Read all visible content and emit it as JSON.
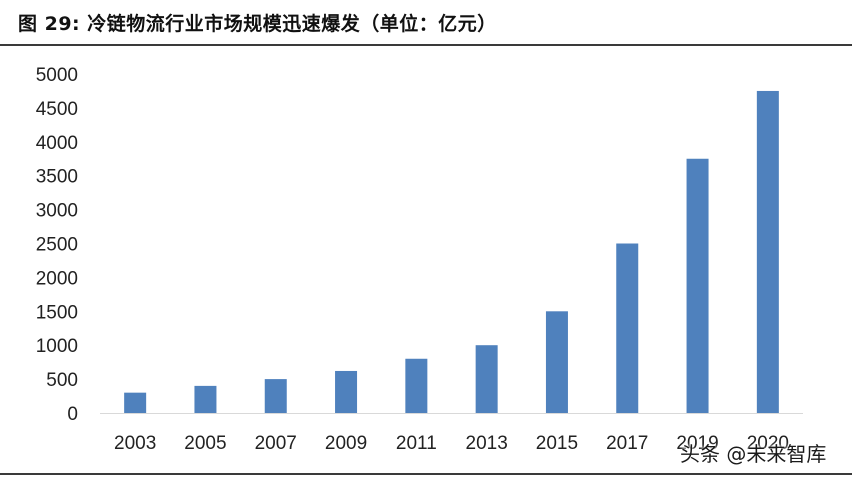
{
  "figure": {
    "title": "图 29:  冷链物流行业市场规模迅速爆发（单位：亿元）"
  },
  "watermark": {
    "text": "头条 @未来智库"
  },
  "colors": {
    "bar": "#4f81bd",
    "axis": "#d9d9d9",
    "rule": "#3a3a3a"
  },
  "chart_data": {
    "type": "bar",
    "categories": [
      "2003",
      "2005",
      "2007",
      "2009",
      "2011",
      "2013",
      "2015",
      "2017",
      "2019",
      "2020"
    ],
    "values": [
      300,
      400,
      500,
      620,
      800,
      1000,
      1500,
      2500,
      3750,
      4750
    ],
    "ylim": [
      0,
      5000
    ],
    "yticks": [
      0,
      500,
      1000,
      1500,
      2000,
      2500,
      3000,
      3500,
      4000,
      4500,
      5000
    ],
    "grid": false,
    "legend": "none"
  }
}
